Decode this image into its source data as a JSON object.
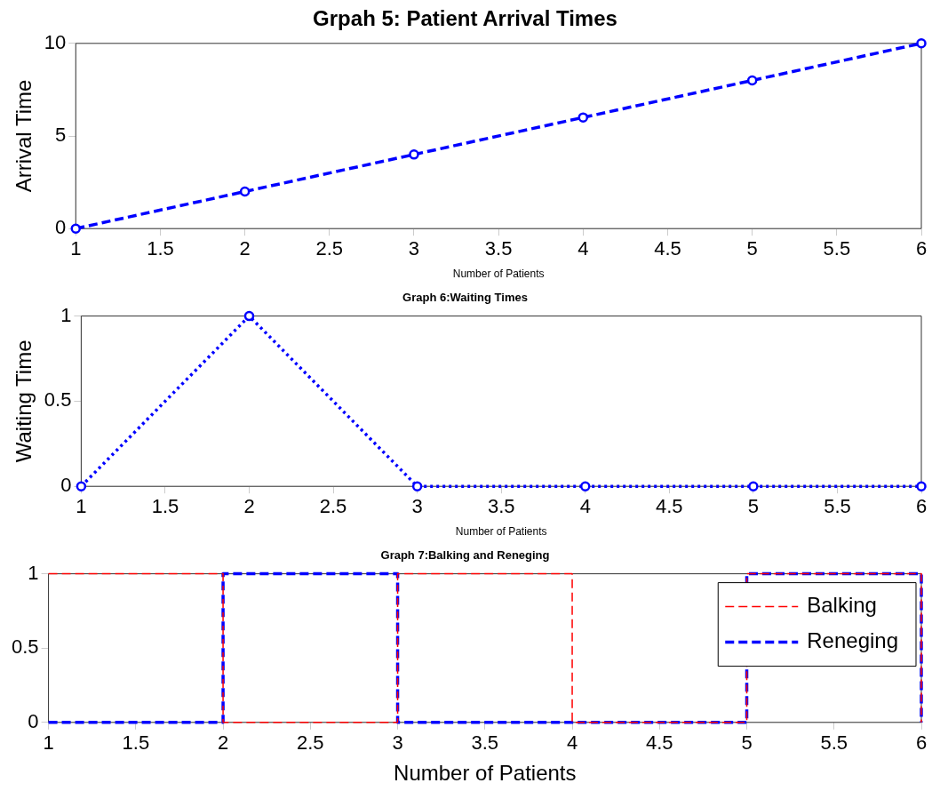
{
  "chart_data": [
    {
      "type": "line",
      "title": "Grpah 5: Patient Arrival Times",
      "xlabel": "Number of Patients",
      "ylabel": "Arrival Time",
      "x": [
        1,
        2,
        3,
        4,
        5,
        6
      ],
      "xlim": [
        1,
        6
      ],
      "xticks": [
        1,
        1.5,
        2,
        2.5,
        3,
        3.5,
        4,
        4.5,
        5,
        5.5,
        6
      ],
      "ylim": [
        0,
        10
      ],
      "yticks": [
        0,
        5,
        10
      ],
      "marker": "circle",
      "line_style": "dashed",
      "series": [
        {
          "color": "#0000ff",
          "values": [
            0,
            2,
            4,
            6,
            8,
            10
          ]
        }
      ]
    },
    {
      "type": "line",
      "title": "Graph 6:Waiting Times",
      "xlabel": "Number of Patients",
      "ylabel": "Waiting Time",
      "x": [
        1,
        2,
        3,
        4,
        5,
        6
      ],
      "xlim": [
        1,
        6
      ],
      "xticks": [
        1,
        1.5,
        2,
        2.5,
        3,
        3.5,
        4,
        4.5,
        5,
        5.5,
        6
      ],
      "ylim": [
        0,
        1
      ],
      "yticks": [
        0,
        0.5,
        1
      ],
      "marker": "circle",
      "line_style": "dotted",
      "series": [
        {
          "color": "#0000ff",
          "values": [
            0,
            1,
            0,
            0,
            0,
            0
          ]
        }
      ]
    },
    {
      "type": "step",
      "title": "Graph 7:Balking and Reneging",
      "xlabel": "Number of Patients",
      "x": [
        1,
        2,
        3,
        4,
        5,
        6
      ],
      "xlim": [
        1,
        6
      ],
      "xticks": [
        1,
        1.5,
        2,
        2.5,
        3,
        3.5,
        4,
        4.5,
        5,
        5.5,
        6
      ],
      "ylim": [
        0,
        1
      ],
      "yticks": [
        0,
        0.5,
        1
      ],
      "line_style": "dashed",
      "legend": "top right",
      "series": [
        {
          "name": "Balking",
          "color": "#ff0000",
          "values": [
            1,
            0,
            1,
            0,
            1,
            0
          ]
        },
        {
          "name": "Reneging",
          "color": "#0000ff",
          "values": [
            0,
            1,
            0,
            0,
            1,
            0
          ]
        }
      ]
    }
  ]
}
